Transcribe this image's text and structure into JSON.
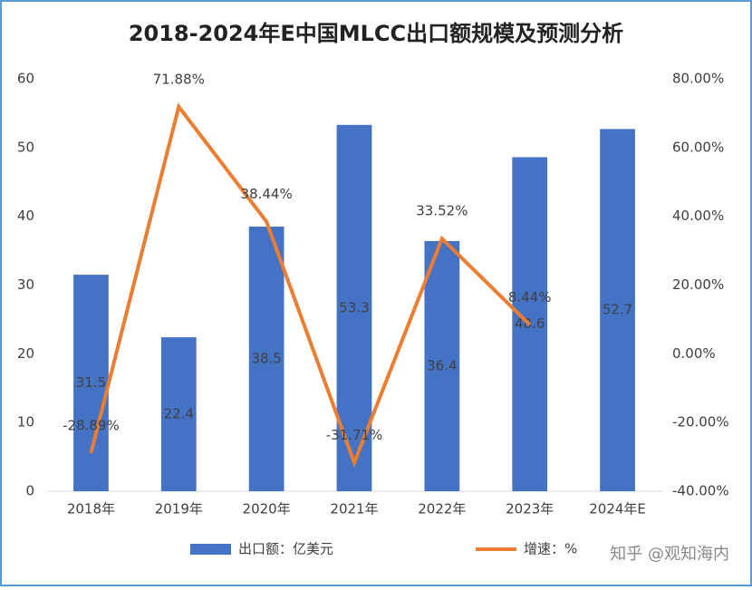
{
  "chart_data": {
    "type": "bar",
    "title": "2018-2024年E中国MLCC出口额规模及预测分析",
    "categories": [
      "2018年",
      "2019年",
      "2020年",
      "2021年",
      "2022年",
      "2023年",
      "2024年E"
    ],
    "series": [
      {
        "name": "出口额：亿美元",
        "type": "bar",
        "color": "#4472c4",
        "values": [
          31.5,
          22.4,
          38.5,
          53.3,
          36.4,
          48.6,
          52.7
        ]
      },
      {
        "name": "增速：%",
        "type": "line",
        "axis": "y2",
        "color": "#ed7d31",
        "values": [
          -28.89,
          71.88,
          38.44,
          -31.71,
          33.52,
          8.44,
          null
        ],
        "value_labels": [
          "-28.89%",
          "71.88%",
          "38.44%",
          "-31.71%",
          "33.52%",
          "8.44%",
          null
        ]
      }
    ],
    "ylim": [
      0,
      60
    ],
    "yticks": [
      0,
      10,
      20,
      30,
      40,
      50,
      60
    ],
    "y2lim": [
      -40,
      80
    ],
    "y2ticks": [
      {
        "value": -40,
        "label": "-40.00%"
      },
      {
        "value": -20,
        "label": "-20.00%"
      },
      {
        "value": 0,
        "label": "0.00%"
      },
      {
        "value": 20,
        "label": "20.00%"
      },
      {
        "value": 40,
        "label": "40.00%"
      },
      {
        "value": 60,
        "label": "60.00%"
      },
      {
        "value": 80,
        "label": "80.00%"
      }
    ],
    "grid": false,
    "watermark": "知乎 @观知海内"
  }
}
